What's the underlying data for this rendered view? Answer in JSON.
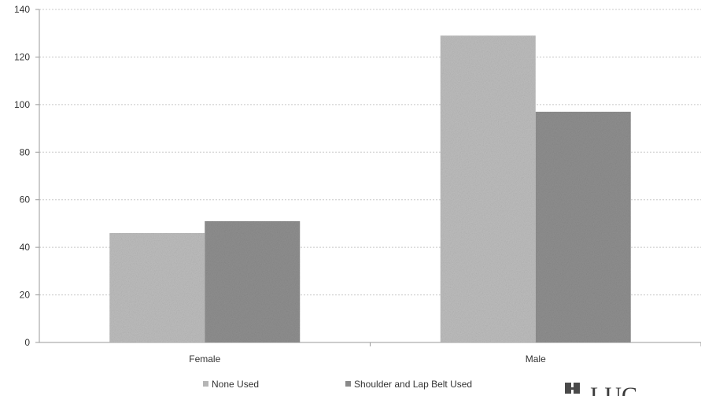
{
  "chart_data": {
    "type": "bar",
    "categories": [
      "Female",
      "Male"
    ],
    "series": [
      {
        "name": "None Used",
        "values": [
          46,
          129
        ],
        "color": "#bdbdbd"
      },
      {
        "name": "Shoulder and Lap Belt Used",
        "values": [
          51,
          97
        ],
        "color": "#8f8f8f"
      }
    ],
    "ylim": [
      0,
      140
    ],
    "yticks": [
      0,
      20,
      40,
      60,
      80,
      100,
      120,
      140
    ],
    "grid": true,
    "legend_position": "bottom"
  },
  "watermark": {
    "text": "LUC",
    "icon": "stamp-logo-icon"
  }
}
